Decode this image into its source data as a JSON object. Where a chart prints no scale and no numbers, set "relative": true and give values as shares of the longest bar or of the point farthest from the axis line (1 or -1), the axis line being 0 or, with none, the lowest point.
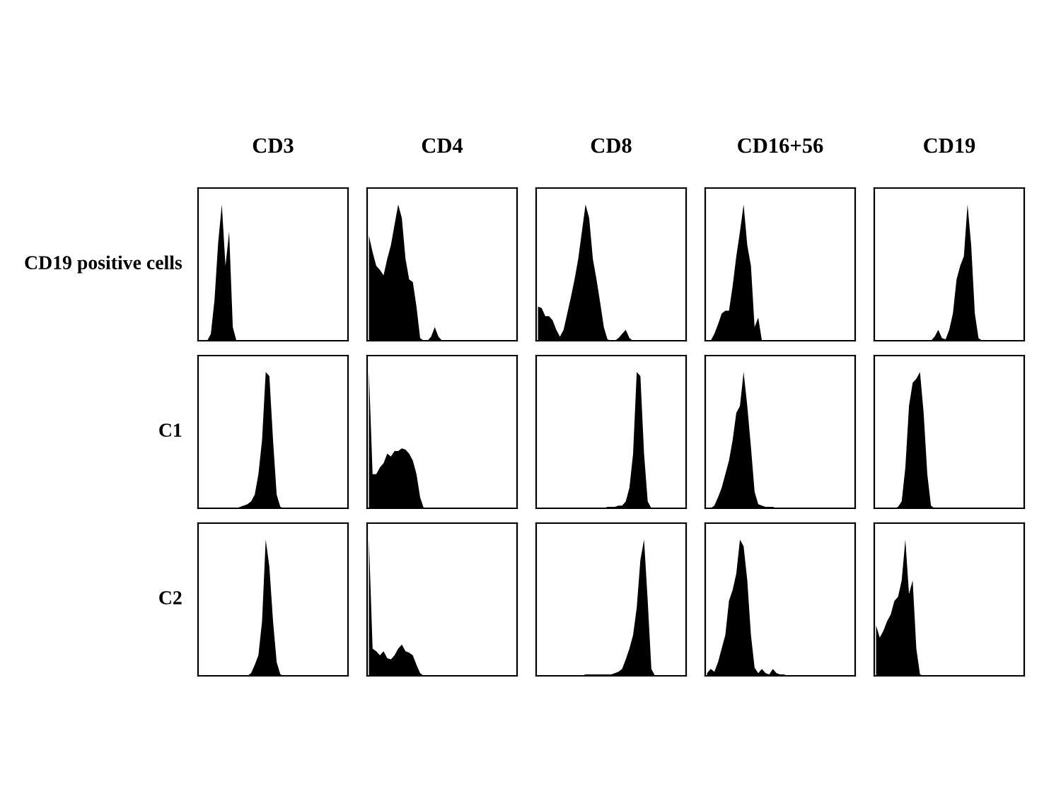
{
  "chart_data": [
    {
      "type": "area",
      "relative": true,
      "title": "CD3",
      "ylabel": "CD19 positive cells",
      "categories": [
        null,
        null,
        null,
        null,
        null,
        null,
        null,
        null,
        null,
        null,
        null,
        null,
        null,
        null,
        null,
        null,
        null,
        null,
        null,
        null,
        null,
        null,
        null,
        null,
        null,
        null,
        null,
        null,
        null,
        null,
        null,
        null,
        null,
        null,
        null,
        null,
        null,
        null,
        null,
        null,
        null
      ],
      "series": [
        {
          "color": "#000000",
          "values": [
            0,
            0,
            0,
            0.05,
            0.3,
            0.72,
            1,
            0.55,
            0.8,
            0.1,
            0,
            0,
            0,
            0,
            0,
            0,
            0,
            0,
            0,
            0,
            0,
            0,
            0,
            0,
            0,
            0,
            0,
            0,
            0,
            0,
            0,
            0,
            0,
            0,
            0,
            0,
            0,
            0,
            0,
            0,
            0
          ]
        }
      ]
    },
    {
      "type": "area",
      "relative": true,
      "title": "CD4",
      "categories": [
        null,
        null,
        null,
        null,
        null,
        null,
        null,
        null,
        null,
        null,
        null,
        null,
        null,
        null,
        null,
        null,
        null,
        null,
        null,
        null,
        null,
        null,
        null,
        null,
        null,
        null,
        null,
        null,
        null,
        null,
        null,
        null,
        null,
        null,
        null,
        null,
        null,
        null,
        null,
        null,
        null
      ],
      "series": [
        {
          "color": "#000000",
          "values": [
            0.77,
            0.65,
            0.55,
            0.52,
            0.48,
            0.6,
            0.7,
            0.85,
            1,
            0.9,
            0.6,
            0.45,
            0.43,
            0.25,
            0.02,
            0,
            0,
            0.03,
            0.1,
            0.03,
            0,
            0,
            0,
            0,
            0,
            0,
            0,
            0,
            0,
            0,
            0,
            0,
            0,
            0,
            0,
            0,
            0,
            0,
            0,
            0,
            0
          ]
        }
      ]
    },
    {
      "type": "area",
      "relative": true,
      "title": "CD8",
      "categories": [
        null,
        null,
        null,
        null,
        null,
        null,
        null,
        null,
        null,
        null,
        null,
        null,
        null,
        null,
        null,
        null,
        null,
        null,
        null,
        null,
        null,
        null,
        null,
        null,
        null,
        null,
        null,
        null,
        null,
        null,
        null,
        null,
        null,
        null,
        null,
        null,
        null,
        null,
        null,
        null,
        null
      ],
      "series": [
        {
          "color": "#000000",
          "values": [
            0.25,
            0.24,
            0.18,
            0.18,
            0.15,
            0.08,
            0.03,
            0.08,
            0.2,
            0.32,
            0.45,
            0.6,
            0.8,
            1,
            0.9,
            0.6,
            0.45,
            0.28,
            0.1,
            0.01,
            0,
            0,
            0.02,
            0.05,
            0.08,
            0.02,
            0,
            0,
            0,
            0,
            0,
            0,
            0,
            0,
            0,
            0,
            0,
            0,
            0,
            0,
            0
          ]
        }
      ]
    },
    {
      "type": "area",
      "relative": true,
      "title": "CD16+56",
      "categories": [
        null,
        null,
        null,
        null,
        null,
        null,
        null,
        null,
        null,
        null,
        null,
        null,
        null,
        null,
        null,
        null,
        null,
        null,
        null,
        null,
        null,
        null,
        null,
        null,
        null,
        null,
        null,
        null,
        null,
        null,
        null,
        null,
        null,
        null,
        null,
        null,
        null,
        null,
        null,
        null,
        null
      ],
      "series": [
        {
          "color": "#000000",
          "values": [
            0,
            0,
            0.05,
            0.12,
            0.2,
            0.22,
            0.22,
            0.4,
            0.62,
            0.8,
            1,
            0.7,
            0.55,
            0.1,
            0.17,
            0,
            0,
            0,
            0,
            0,
            0,
            0,
            0,
            0,
            0,
            0,
            0,
            0,
            0,
            0,
            0,
            0,
            0,
            0,
            0,
            0,
            0,
            0,
            0,
            0,
            0
          ]
        }
      ]
    },
    {
      "type": "area",
      "relative": true,
      "title": "CD19",
      "categories": [
        null,
        null,
        null,
        null,
        null,
        null,
        null,
        null,
        null,
        null,
        null,
        null,
        null,
        null,
        null,
        null,
        null,
        null,
        null,
        null,
        null,
        null,
        null,
        null,
        null,
        null,
        null,
        null,
        null,
        null,
        null,
        null,
        null,
        null,
        null,
        null,
        null,
        null,
        null,
        null,
        null
      ],
      "series": [
        {
          "color": "#000000",
          "values": [
            0,
            0,
            0,
            0,
            0,
            0,
            0,
            0,
            0,
            0,
            0,
            0,
            0,
            0,
            0,
            0,
            0.03,
            0.08,
            0.02,
            0.01,
            0.08,
            0.2,
            0.45,
            0.55,
            0.62,
            1,
            0.7,
            0.2,
            0.02,
            0,
            0,
            0,
            0,
            0,
            0,
            0,
            0,
            0,
            0,
            0,
            0
          ]
        }
      ]
    },
    {
      "type": "area",
      "relative": true,
      "ylabel": "C1",
      "categories": [
        null,
        null,
        null,
        null,
        null,
        null,
        null,
        null,
        null,
        null,
        null,
        null,
        null,
        null,
        null,
        null,
        null,
        null,
        null,
        null,
        null,
        null,
        null,
        null,
        null,
        null,
        null,
        null,
        null,
        null,
        null,
        null,
        null,
        null,
        null,
        null,
        null,
        null,
        null,
        null,
        null
      ],
      "series": [
        {
          "color": "#000000",
          "values": [
            0,
            0,
            0,
            0,
            0,
            0,
            0,
            0,
            0,
            0,
            0,
            0.01,
            0.02,
            0.03,
            0.05,
            0.1,
            0.25,
            0.5,
            1,
            0.97,
            0.5,
            0.1,
            0.01,
            0,
            0,
            0,
            0,
            0,
            0,
            0,
            0,
            0,
            0,
            0,
            0,
            0,
            0,
            0,
            0,
            0,
            0
          ]
        }
      ]
    },
    {
      "type": "area",
      "relative": true,
      "categories": [
        null,
        null,
        null,
        null,
        null,
        null,
        null,
        null,
        null,
        null,
        null,
        null,
        null,
        null,
        null,
        null,
        null,
        null,
        null,
        null,
        null,
        null,
        null,
        null,
        null,
        null,
        null,
        null,
        null,
        null,
        null,
        null,
        null,
        null,
        null,
        null,
        null,
        null,
        null,
        null,
        null
      ],
      "series": [
        {
          "color": "#000000",
          "values": [
            1,
            0.25,
            0.25,
            0.3,
            0.33,
            0.4,
            0.38,
            0.42,
            0.42,
            0.44,
            0.43,
            0.4,
            0.35,
            0.25,
            0.08,
            0,
            0,
            0,
            0,
            0,
            0,
            0,
            0,
            0,
            0,
            0,
            0,
            0,
            0,
            0,
            0,
            0,
            0,
            0,
            0,
            0,
            0,
            0,
            0,
            0,
            0
          ]
        }
      ]
    },
    {
      "type": "area",
      "relative": true,
      "categories": [
        null,
        null,
        null,
        null,
        null,
        null,
        null,
        null,
        null,
        null,
        null,
        null,
        null,
        null,
        null,
        null,
        null,
        null,
        null,
        null,
        null,
        null,
        null,
        null,
        null,
        null,
        null,
        null,
        null,
        null,
        null,
        null,
        null,
        null,
        null,
        null,
        null,
        null,
        null,
        null,
        null
      ],
      "series": [
        {
          "color": "#000000",
          "values": [
            0,
            0,
            0,
            0,
            0,
            0,
            0,
            0,
            0,
            0,
            0,
            0,
            0,
            0,
            0,
            0,
            0,
            0,
            0,
            0.01,
            0.01,
            0.01,
            0.02,
            0.02,
            0.05,
            0.15,
            0.4,
            1,
            0.97,
            0.4,
            0.05,
            0,
            0,
            0,
            0,
            0,
            0,
            0,
            0,
            0,
            0
          ]
        }
      ]
    },
    {
      "type": "area",
      "relative": true,
      "categories": [
        null,
        null,
        null,
        null,
        null,
        null,
        null,
        null,
        null,
        null,
        null,
        null,
        null,
        null,
        null,
        null,
        null,
        null,
        null,
        null,
        null,
        null,
        null,
        null,
        null,
        null,
        null,
        null,
        null,
        null,
        null,
        null,
        null,
        null,
        null,
        null,
        null,
        null,
        null,
        null,
        null
      ],
      "series": [
        {
          "color": "#000000",
          "values": [
            0,
            0,
            0.02,
            0.08,
            0.15,
            0.25,
            0.35,
            0.5,
            0.7,
            0.75,
            1,
            0.75,
            0.45,
            0.12,
            0.03,
            0.02,
            0.01,
            0.01,
            0.01,
            0,
            0,
            0,
            0,
            0,
            0,
            0,
            0,
            0,
            0,
            0,
            0,
            0,
            0,
            0,
            0,
            0,
            0,
            0,
            0,
            0,
            0
          ]
        }
      ]
    },
    {
      "type": "area",
      "relative": true,
      "categories": [
        null,
        null,
        null,
        null,
        null,
        null,
        null,
        null,
        null,
        null,
        null,
        null,
        null,
        null,
        null,
        null,
        null,
        null,
        null,
        null,
        null,
        null,
        null,
        null,
        null,
        null,
        null,
        null,
        null,
        null,
        null,
        null,
        null,
        null,
        null,
        null,
        null,
        null,
        null,
        null,
        null
      ],
      "series": [
        {
          "color": "#000000",
          "values": [
            0,
            0,
            0,
            0,
            0,
            0,
            0.01,
            0.05,
            0.3,
            0.75,
            0.92,
            0.95,
            1,
            0.7,
            0.25,
            0.02,
            0,
            0,
            0,
            0,
            0,
            0,
            0,
            0,
            0,
            0,
            0,
            0,
            0,
            0,
            0,
            0,
            0,
            0,
            0,
            0,
            0,
            0,
            0,
            0,
            0
          ]
        }
      ]
    },
    {
      "type": "area",
      "relative": true,
      "ylabel": "C2",
      "categories": [
        null,
        null,
        null,
        null,
        null,
        null,
        null,
        null,
        null,
        null,
        null,
        null,
        null,
        null,
        null,
        null,
        null,
        null,
        null,
        null,
        null,
        null,
        null,
        null,
        null,
        null,
        null,
        null,
        null,
        null,
        null,
        null,
        null,
        null,
        null,
        null,
        null,
        null,
        null,
        null,
        null
      ],
      "series": [
        {
          "color": "#000000",
          "values": [
            0,
            0,
            0,
            0,
            0,
            0,
            0,
            0,
            0,
            0,
            0,
            0,
            0,
            0,
            0.02,
            0.08,
            0.15,
            0.4,
            1,
            0.8,
            0.4,
            0.1,
            0.01,
            0,
            0,
            0,
            0,
            0,
            0,
            0,
            0,
            0,
            0,
            0,
            0,
            0,
            0,
            0,
            0,
            0,
            0
          ]
        }
      ]
    },
    {
      "type": "area",
      "relative": true,
      "categories": [
        null,
        null,
        null,
        null,
        null,
        null,
        null,
        null,
        null,
        null,
        null,
        null,
        null,
        null,
        null,
        null,
        null,
        null,
        null,
        null,
        null,
        null,
        null,
        null,
        null,
        null,
        null,
        null,
        null,
        null,
        null,
        null,
        null,
        null,
        null,
        null,
        null,
        null,
        null,
        null,
        null
      ],
      "series": [
        {
          "color": "#000000",
          "values": [
            1,
            0.2,
            0.18,
            0.15,
            0.18,
            0.13,
            0.12,
            0.15,
            0.2,
            0.23,
            0.18,
            0.17,
            0.15,
            0.08,
            0.02,
            0,
            0,
            0,
            0,
            0,
            0,
            0,
            0,
            0,
            0,
            0,
            0,
            0,
            0,
            0,
            0,
            0,
            0,
            0,
            0,
            0,
            0,
            0,
            0,
            0,
            0
          ]
        }
      ]
    },
    {
      "type": "area",
      "relative": true,
      "categories": [
        null,
        null,
        null,
        null,
        null,
        null,
        null,
        null,
        null,
        null,
        null,
        null,
        null,
        null,
        null,
        null,
        null,
        null,
        null,
        null,
        null,
        null,
        null,
        null,
        null,
        null,
        null,
        null,
        null,
        null,
        null,
        null,
        null,
        null,
        null,
        null,
        null,
        null,
        null,
        null,
        null
      ],
      "series": [
        {
          "color": "#000000",
          "values": [
            0,
            0,
            0,
            0,
            0,
            0,
            0,
            0,
            0,
            0,
            0,
            0,
            0,
            0.01,
            0.01,
            0.01,
            0.01,
            0.01,
            0.01,
            0.01,
            0.01,
            0.02,
            0.03,
            0.05,
            0.12,
            0.2,
            0.3,
            0.5,
            0.85,
            1,
            0.55,
            0.05,
            0,
            0,
            0,
            0,
            0,
            0,
            0,
            0,
            0
          ]
        }
      ]
    },
    {
      "type": "area",
      "relative": true,
      "categories": [
        null,
        null,
        null,
        null,
        null,
        null,
        null,
        null,
        null,
        null,
        null,
        null,
        null,
        null,
        null,
        null,
        null,
        null,
        null,
        null,
        null,
        null,
        null,
        null,
        null,
        null,
        null,
        null,
        null,
        null,
        null,
        null,
        null,
        null,
        null,
        null,
        null,
        null,
        null,
        null,
        null
      ],
      "series": [
        {
          "color": "#000000",
          "values": [
            0.02,
            0.05,
            0.03,
            0.1,
            0.2,
            0.3,
            0.55,
            0.63,
            0.75,
            1,
            0.95,
            0.7,
            0.3,
            0.06,
            0.02,
            0.05,
            0.02,
            0.01,
            0.05,
            0.02,
            0.01,
            0.01,
            0,
            0,
            0,
            0,
            0,
            0,
            0,
            0,
            0,
            0,
            0,
            0,
            0,
            0,
            0,
            0,
            0,
            0,
            0
          ]
        }
      ]
    },
    {
      "type": "area",
      "relative": true,
      "categories": [
        null,
        null,
        null,
        null,
        null,
        null,
        null,
        null,
        null,
        null,
        null,
        null,
        null,
        null,
        null,
        null,
        null,
        null,
        null,
        null,
        null,
        null,
        null,
        null,
        null,
        null,
        null,
        null,
        null,
        null,
        null,
        null,
        null,
        null,
        null,
        null,
        null,
        null,
        null,
        null,
        null
      ],
      "series": [
        {
          "color": "#000000",
          "values": [
            0.37,
            0.28,
            0.33,
            0.4,
            0.45,
            0.55,
            0.58,
            0.7,
            1,
            0.6,
            0.7,
            0.2,
            0.01,
            0,
            0,
            0,
            0,
            0,
            0,
            0,
            0,
            0,
            0,
            0,
            0,
            0,
            0,
            0,
            0,
            0,
            0,
            0,
            0,
            0,
            0,
            0,
            0,
            0,
            0,
            0,
            0
          ]
        }
      ]
    }
  ]
}
